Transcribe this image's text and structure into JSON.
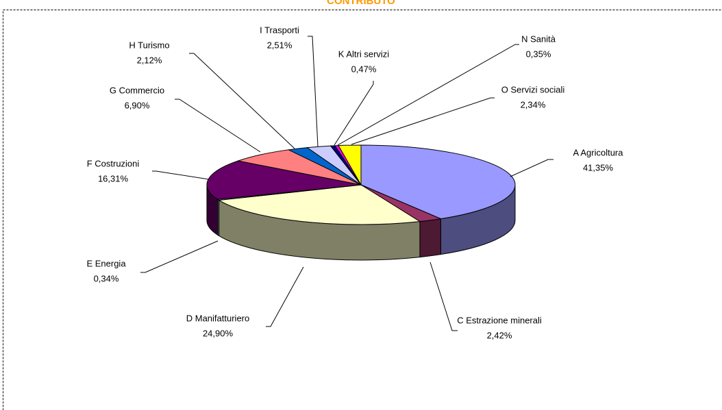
{
  "chart_data": {
    "type": "pie3d",
    "title": "CONTRIBUTO",
    "categories": [
      "A  Agricoltura",
      "C  Estrazione minerali",
      "D  Manifatturiero",
      "E  Energia",
      "F  Costruzioni",
      "G  Commercio",
      "H  Turismo",
      "I  Trasporti",
      "K  Altri servizi",
      "N  Sanità",
      "O  Servizi sociali"
    ],
    "values": [
      41.35,
      2.42,
      24.9,
      0.34,
      16.31,
      6.9,
      2.12,
      2.51,
      0.47,
      0.35,
      2.34
    ],
    "value_labels": [
      "41,35%",
      "2,42%",
      "24,90%",
      "0,34%",
      "16,31%",
      "6,90%",
      "2,12%",
      "2,51%",
      "0,47%",
      "0,35%",
      "2,34%"
    ],
    "colors": [
      "#9999ff",
      "#993366",
      "#ffffcc",
      "#ccffff",
      "#660066",
      "#ff8080",
      "#0066cc",
      "#ccccff",
      "#000080",
      "#ff00ff",
      "#ffff00"
    ]
  }
}
